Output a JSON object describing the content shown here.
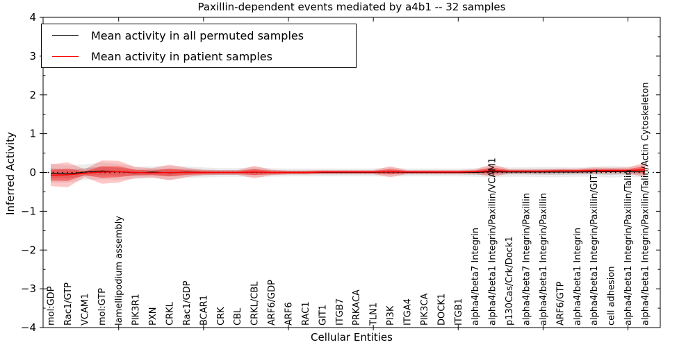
{
  "title": "Paxillin-dependent events mediated by a4b1 -- 32 samples",
  "legend": {
    "entries": [
      {
        "label": "Mean activity in all permuted samples",
        "color": "#000000"
      },
      {
        "label": "Mean activity in patient samples",
        "color": "#ff0000"
      }
    ]
  },
  "chart_data": {
    "type": "line",
    "title": "Paxillin-dependent events mediated by a4b1 -- 32 samples",
    "xlabel": "Cellular Entities",
    "ylabel": "Inferred Activity",
    "ylim": [
      -4,
      4
    ],
    "ytick_values": [
      4,
      3,
      2,
      1,
      0,
      -1,
      -2,
      -3,
      -4
    ],
    "ytick_labels": [
      "4",
      "3",
      "2",
      "1",
      "0",
      "−1",
      "−2",
      "−3",
      "−4"
    ],
    "ytick_minor_step": 0.5,
    "xtick_major_every": 5,
    "grid": false,
    "legend_position": "upper left",
    "zero_line": {
      "style": "dotted",
      "color": "#000000",
      "y": 0
    },
    "categories": [
      "mol:GDP",
      "Rac1/GTP",
      "VCAM1",
      "mol:GTP",
      "lamellipodium assembly",
      "PIK3R1",
      "PXN",
      "CRKL",
      "Rac1/GDP",
      "BCAR1",
      "CRK",
      "CBL",
      "CRKL/CBL",
      "ARF6/GDP",
      "ARF6",
      "RAC1",
      "GIT1",
      "ITGB7",
      "PRKACA",
      "TLN1",
      "PI3K",
      "ITGA4",
      "PIK3CA",
      "DOCK1",
      "ITGB1",
      "alpha4/beta7 Integrin",
      "alpha4/beta1 Integrin/Paxillin/VCAM1",
      "p130Cas/Crk/Dock1",
      "alpha4/beta7 Integrin/Paxillin",
      "alpha4/beta1 Integrin/Paxillin",
      "ARF6/GTP",
      "alpha4/beta1 Integrin",
      "alpha4/beta1 Integrin/Paxillin/GIT1",
      "cell adhesion",
      "alpha4/beta1 Integrin/Paxillin/Talin",
      "alpha4/beta1 Integrin/Paxillin/Talin/Actin Cytoskeleton"
    ],
    "series": [
      {
        "name": "Mean activity in all permuted samples",
        "color": "#000000",
        "band_color": "#000000",
        "band_inner_alpha": 0.13,
        "band_outer_alpha": 0.08,
        "mean": [
          -0.02,
          -0.04,
          0.01,
          0.04,
          0.02,
          -0.01,
          0.01,
          -0.01,
          0.01,
          0.0,
          0.0,
          0.0,
          0.01,
          0.0,
          0.0,
          0.0,
          0.0,
          0.0,
          0.0,
          0.0,
          0.01,
          0.0,
          0.0,
          0.0,
          0.0,
          0.0,
          0.02,
          0.01,
          0.01,
          0.01,
          0.01,
          0.01,
          0.02,
          0.02,
          0.02,
          0.03
        ],
        "band_inner": [
          0.13,
          0.11,
          0.1,
          0.11,
          0.1,
          0.08,
          0.08,
          0.09,
          0.08,
          0.07,
          0.06,
          0.06,
          0.07,
          0.06,
          0.05,
          0.05,
          0.05,
          0.05,
          0.05,
          0.05,
          0.06,
          0.05,
          0.05,
          0.05,
          0.05,
          0.06,
          0.08,
          0.06,
          0.06,
          0.07,
          0.07,
          0.06,
          0.07,
          0.08,
          0.07,
          0.08
        ],
        "band_outer": [
          0.25,
          0.22,
          0.2,
          0.22,
          0.2,
          0.16,
          0.15,
          0.18,
          0.15,
          0.13,
          0.11,
          0.11,
          0.13,
          0.11,
          0.1,
          0.1,
          0.1,
          0.1,
          0.1,
          0.1,
          0.12,
          0.1,
          0.1,
          0.1,
          0.1,
          0.11,
          0.15,
          0.12,
          0.12,
          0.13,
          0.13,
          0.12,
          0.13,
          0.15,
          0.13,
          0.16
        ]
      },
      {
        "name": "Mean activity in patient samples",
        "color": "#ff0000",
        "band_color": "#ff0000",
        "band_inner_alpha": 0.4,
        "band_outer_alpha": 0.22,
        "mean": [
          -0.07,
          -0.06,
          -0.02,
          0.01,
          0.02,
          0.0,
          -0.01,
          0.0,
          0.0,
          0.0,
          0.0,
          0.0,
          0.01,
          0.0,
          0.0,
          0.0,
          0.01,
          0.01,
          0.01,
          0.01,
          0.02,
          0.01,
          0.01,
          0.01,
          0.01,
          0.02,
          0.05,
          0.03,
          0.03,
          0.03,
          0.04,
          0.04,
          0.05,
          0.05,
          0.05,
          0.07
        ],
        "band_inner": [
          0.14,
          0.16,
          0.05,
          0.15,
          0.14,
          0.07,
          0.06,
          0.1,
          0.06,
          0.04,
          0.03,
          0.03,
          0.08,
          0.04,
          0.03,
          0.03,
          0.03,
          0.03,
          0.03,
          0.03,
          0.07,
          0.03,
          0.03,
          0.03,
          0.03,
          0.03,
          0.08,
          0.03,
          0.03,
          0.03,
          0.03,
          0.03,
          0.04,
          0.04,
          0.04,
          0.09
        ],
        "band_outer": [
          0.28,
          0.32,
          0.1,
          0.3,
          0.28,
          0.14,
          0.12,
          0.2,
          0.12,
          0.07,
          0.06,
          0.06,
          0.16,
          0.07,
          0.05,
          0.05,
          0.05,
          0.05,
          0.05,
          0.05,
          0.14,
          0.05,
          0.05,
          0.05,
          0.05,
          0.06,
          0.16,
          0.06,
          0.06,
          0.06,
          0.06,
          0.06,
          0.08,
          0.07,
          0.08,
          0.18
        ]
      }
    ]
  }
}
